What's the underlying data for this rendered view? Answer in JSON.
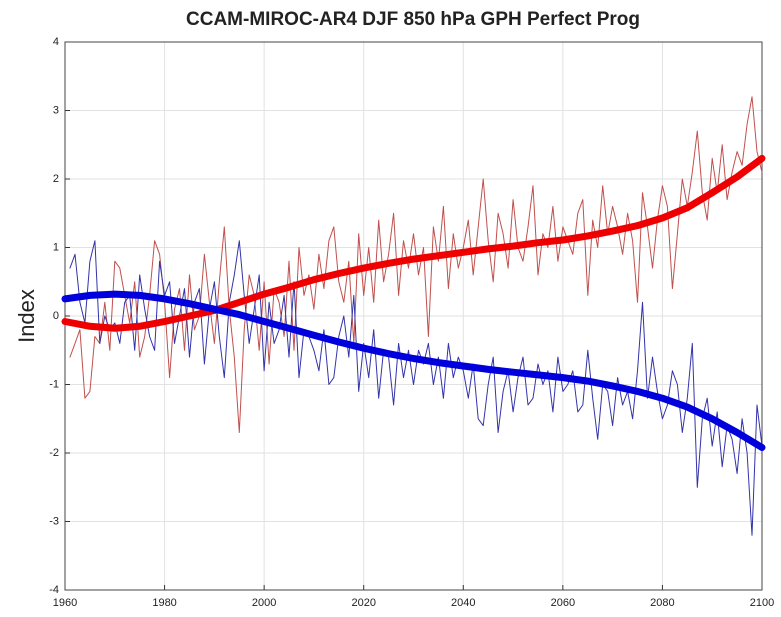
{
  "chart_data": {
    "type": "line",
    "title": "CCAM-MIROC-AR4 DJF 850 hPa GPH Perfect Prog",
    "y_label": "Index",
    "xlim": [
      1960,
      2100
    ],
    "xticks": [
      1960,
      1980,
      2000,
      2020,
      2040,
      2060,
      2080,
      2100
    ],
    "ylim": [
      -4,
      4
    ],
    "yticks": [
      -4,
      -3,
      -2,
      -1,
      0,
      1,
      2,
      3,
      4
    ],
    "grid": true,
    "x": [
      1961,
      1962,
      1963,
      1964,
      1965,
      1966,
      1967,
      1968,
      1969,
      1970,
      1971,
      1972,
      1973,
      1974,
      1975,
      1976,
      1977,
      1978,
      1979,
      1980,
      1981,
      1982,
      1983,
      1984,
      1985,
      1986,
      1987,
      1988,
      1989,
      1990,
      1991,
      1992,
      1993,
      1994,
      1995,
      1996,
      1997,
      1998,
      1999,
      2000,
      2001,
      2002,
      2003,
      2004,
      2005,
      2006,
      2007,
      2008,
      2009,
      2010,
      2011,
      2012,
      2013,
      2014,
      2015,
      2016,
      2017,
      2018,
      2019,
      2020,
      2021,
      2022,
      2023,
      2024,
      2025,
      2026,
      2027,
      2028,
      2029,
      2030,
      2031,
      2032,
      2033,
      2034,
      2035,
      2036,
      2037,
      2038,
      2039,
      2040,
      2041,
      2042,
      2043,
      2044,
      2045,
      2046,
      2047,
      2048,
      2049,
      2050,
      2051,
      2052,
      2053,
      2054,
      2055,
      2056,
      2057,
      2058,
      2059,
      2060,
      2061,
      2062,
      2063,
      2064,
      2065,
      2066,
      2067,
      2068,
      2069,
      2070,
      2071,
      2072,
      2073,
      2074,
      2075,
      2076,
      2077,
      2078,
      2079,
      2080,
      2081,
      2082,
      2083,
      2084,
      2085,
      2086,
      2087,
      2088,
      2089,
      2090,
      2091,
      2092,
      2093,
      2094,
      2095,
      2096,
      2097,
      2098,
      2099,
      2100
    ],
    "series": [
      {
        "color": "#c0504d",
        "width": 1,
        "values": [
          -0.6,
          -0.4,
          -0.2,
          -1.2,
          -1.1,
          -0.3,
          -0.4,
          0.2,
          -0.5,
          0.8,
          0.7,
          0.3,
          -0.1,
          0.5,
          -0.6,
          -0.3,
          0.3,
          1.1,
          0.9,
          0.2,
          -0.9,
          0.1,
          0.4,
          -0.5,
          0.6,
          -0.2,
          0.0,
          0.9,
          0.2,
          -0.4,
          0.5,
          1.3,
          0.1,
          -0.6,
          -1.7,
          -0.2,
          0.6,
          0.3,
          -0.5,
          0.5,
          -0.7,
          0.4,
          0.2,
          -0.3,
          0.8,
          -0.5,
          1.0,
          0.3,
          0.6,
          0.1,
          0.9,
          0.4,
          1.1,
          1.3,
          0.5,
          0.2,
          0.8,
          -0.4,
          1.2,
          0.3,
          1.0,
          0.2,
          1.4,
          0.5,
          0.9,
          1.5,
          0.3,
          1.1,
          0.7,
          1.2,
          0.6,
          1.0,
          -0.3,
          1.3,
          0.8,
          1.6,
          0.4,
          1.2,
          0.7,
          1.0,
          1.4,
          0.6,
          1.3,
          2.0,
          1.1,
          0.5,
          1.5,
          1.2,
          0.7,
          1.7,
          1.0,
          0.8,
          1.3,
          1.9,
          0.6,
          1.2,
          1.0,
          1.6,
          0.8,
          1.3,
          1.1,
          0.9,
          1.5,
          1.7,
          0.3,
          1.4,
          1.0,
          1.9,
          1.2,
          1.6,
          1.3,
          0.9,
          1.5,
          1.1,
          0.2,
          1.8,
          1.3,
          0.7,
          1.4,
          1.9,
          1.6,
          0.4,
          1.2,
          2.0,
          1.6,
          2.1,
          2.7,
          1.8,
          1.4,
          2.3,
          1.8,
          2.5,
          1.7,
          2.1,
          2.4,
          2.2,
          2.8,
          3.2,
          2.4,
          2.1
        ]
      },
      {
        "color": "#3333aa",
        "width": 1,
        "values": [
          0.7,
          0.9,
          0.2,
          -0.1,
          0.8,
          1.1,
          -0.4,
          0.0,
          -0.2,
          -0.1,
          -0.4,
          0.2,
          0.3,
          -0.5,
          0.6,
          0.1,
          -0.3,
          -0.5,
          0.8,
          0.3,
          0.5,
          -0.4,
          0.0,
          0.4,
          -0.6,
          0.2,
          0.4,
          -0.7,
          0.1,
          0.5,
          -0.3,
          -0.9,
          0.2,
          0.6,
          1.1,
          0.3,
          -0.4,
          0.1,
          0.6,
          -0.8,
          0.2,
          -0.4,
          -0.2,
          0.3,
          -0.6,
          0.5,
          -0.9,
          -0.2,
          -0.3,
          -0.5,
          -0.8,
          -0.2,
          -1.0,
          -0.9,
          -0.3,
          0.0,
          -0.6,
          0.3,
          -1.1,
          -0.4,
          -0.9,
          -0.2,
          -1.2,
          -0.5,
          -0.6,
          -1.3,
          -0.4,
          -0.9,
          -0.5,
          -1.0,
          -0.5,
          -0.7,
          -0.4,
          -1.0,
          -0.6,
          -1.2,
          -0.4,
          -0.9,
          -0.6,
          -0.8,
          -1.2,
          -0.7,
          -1.5,
          -1.6,
          -1.0,
          -0.6,
          -1.7,
          -1.1,
          -0.8,
          -1.4,
          -0.9,
          -0.6,
          -1.3,
          -1.2,
          -0.7,
          -1.0,
          -0.8,
          -1.4,
          -0.6,
          -1.1,
          -1.0,
          -0.8,
          -1.4,
          -1.3,
          -0.5,
          -1.2,
          -1.8,
          -1.0,
          -1.1,
          -1.6,
          -0.9,
          -1.3,
          -1.1,
          -1.5,
          -0.8,
          0.2,
          -1.2,
          -0.6,
          -1.1,
          -1.5,
          -1.3,
          -0.8,
          -1.0,
          -1.7,
          -1.2,
          -0.4,
          -2.5,
          -1.5,
          -1.2,
          -1.9,
          -1.4,
          -2.2,
          -1.6,
          -1.8,
          -2.3,
          -1.5,
          -2.0,
          -3.2,
          -1.3,
          -1.9
        ]
      },
      {
        "color": "#ee0000",
        "width": 7,
        "x": [
          1960,
          1965,
          1970,
          1975,
          1980,
          1985,
          1990,
          1995,
          2000,
          2005,
          2010,
          2015,
          2020,
          2025,
          2030,
          2035,
          2040,
          2045,
          2050,
          2055,
          2060,
          2065,
          2070,
          2075,
          2080,
          2085,
          2090,
          2095,
          2100
        ],
        "values": [
          -0.08,
          -0.15,
          -0.18,
          -0.15,
          -0.08,
          0.0,
          0.08,
          0.2,
          0.32,
          0.42,
          0.53,
          0.62,
          0.7,
          0.77,
          0.83,
          0.88,
          0.93,
          0.98,
          1.02,
          1.07,
          1.11,
          1.17,
          1.24,
          1.32,
          1.43,
          1.58,
          1.8,
          2.03,
          2.3
        ]
      },
      {
        "color": "#0000dd",
        "width": 7,
        "x": [
          1960,
          1965,
          1970,
          1975,
          1980,
          1985,
          1990,
          1995,
          2000,
          2005,
          2010,
          2015,
          2020,
          2025,
          2030,
          2035,
          2040,
          2045,
          2050,
          2055,
          2060,
          2065,
          2070,
          2075,
          2080,
          2085,
          2090,
          2095,
          2100
        ],
        "values": [
          0.25,
          0.3,
          0.32,
          0.3,
          0.25,
          0.18,
          0.1,
          0.02,
          -0.08,
          -0.18,
          -0.28,
          -0.38,
          -0.47,
          -0.55,
          -0.62,
          -0.68,
          -0.73,
          -0.78,
          -0.82,
          -0.86,
          -0.9,
          -0.95,
          -1.02,
          -1.1,
          -1.2,
          -1.33,
          -1.5,
          -1.7,
          -1.92
        ]
      }
    ]
  }
}
